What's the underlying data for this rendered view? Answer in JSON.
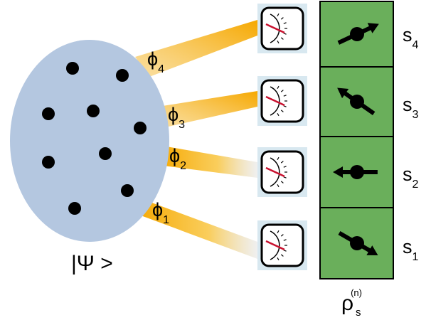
{
  "wavefunction_label": "|Ψ >",
  "density_label": {
    "symbol": "ρ",
    "subscript": "s",
    "superscript": "(n)"
  },
  "channels": [
    {
      "phi": "ϕ",
      "phi_index": "4",
      "site": "s",
      "site_index": "4",
      "spin": "up-right"
    },
    {
      "phi": "ϕ",
      "phi_index": "3",
      "site": "s",
      "site_index": "3",
      "spin": "up-left"
    },
    {
      "phi": "ϕ",
      "phi_index": "2",
      "site": "s",
      "site_index": "2",
      "spin": "left"
    },
    {
      "phi": "ϕ",
      "phi_index": "1",
      "site": "s",
      "site_index": "1",
      "spin": "down-right"
    }
  ],
  "colors": {
    "ellipse": "#b4c7e0",
    "beam": "#f4b400",
    "panel": "#6aaf5b",
    "gauge_bg": "#d8e8f0",
    "needle": "#c8102e"
  }
}
